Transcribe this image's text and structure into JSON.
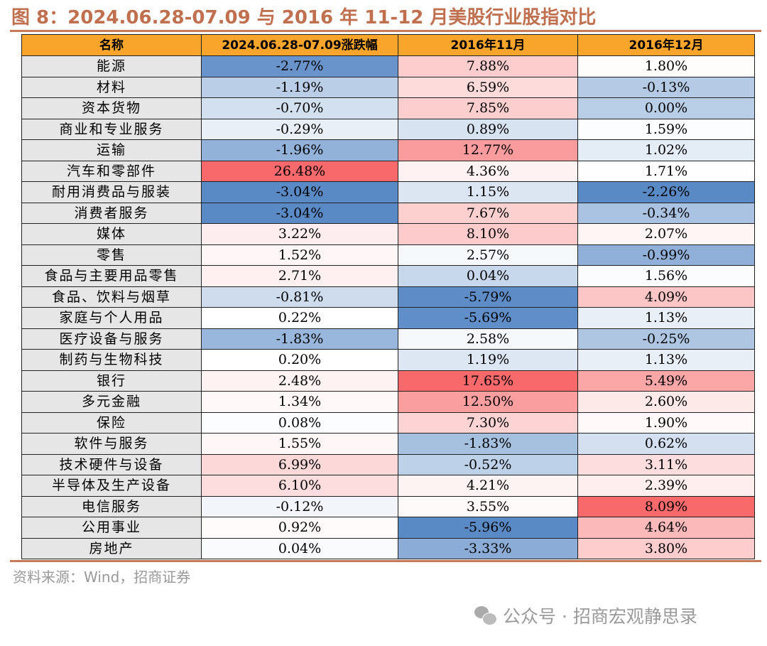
{
  "title": "图 8：2024.06.28-07.09 与 2016 年 11-12 月美股行业股指对比",
  "columns": [
    "名称",
    "2024.06.28-07.09涨跌幅",
    "2016年11月",
    "2016年12月"
  ],
  "rows": [
    [
      "能源",
      "-2.77%",
      "7.88%",
      "1.80%"
    ],
    [
      "材料",
      "-1.19%",
      "6.59%",
      "-0.13%"
    ],
    [
      "资本货物",
      "-0.70%",
      "7.85%",
      "0.00%"
    ],
    [
      "商业和专业服务",
      "-0.29%",
      "0.89%",
      "1.59%"
    ],
    [
      "运输",
      "-1.96%",
      "12.77%",
      "1.02%"
    ],
    [
      "汽车和零部件",
      "26.48%",
      "4.36%",
      "1.71%"
    ],
    [
      "耐用消费品与服装",
      "-3.04%",
      "1.15%",
      "-2.26%"
    ],
    [
      "消费者服务",
      "-3.04%",
      "7.67%",
      "-0.34%"
    ],
    [
      "媒体",
      "3.22%",
      "8.10%",
      "2.07%"
    ],
    [
      "零售",
      "1.52%",
      "2.57%",
      "-0.99%"
    ],
    [
      "食品与主要用品零售",
      "2.71%",
      "0.04%",
      "1.56%"
    ],
    [
      "食品、饮料与烟草",
      "-0.81%",
      "-5.79%",
      "4.09%"
    ],
    [
      "家庭与个人用品",
      "0.22%",
      "-5.69%",
      "1.13%"
    ],
    [
      "医疗设备与服务",
      "-1.83%",
      "2.58%",
      "-0.25%"
    ],
    [
      "制药与生物科技",
      "0.20%",
      "1.19%",
      "1.13%"
    ],
    [
      "银行",
      "2.48%",
      "17.65%",
      "5.49%"
    ],
    [
      "多元金融",
      "1.34%",
      "12.50%",
      "2.60%"
    ],
    [
      "保险",
      "0.08%",
      "7.30%",
      "1.90%"
    ],
    [
      "软件与服务",
      "1.55%",
      "-1.83%",
      "0.62%"
    ],
    [
      "技术硬件与设备",
      "6.99%",
      "-0.52%",
      "3.11%"
    ],
    [
      "半导体及生产设备",
      "6.10%",
      "4.21%",
      "2.39%"
    ],
    [
      "电信服务",
      "-0.12%",
      "3.55%",
      "8.09%"
    ],
    [
      "公用事业",
      "0.92%",
      "-5.96%",
      "4.64%"
    ],
    [
      "房地产",
      "0.04%",
      "-3.33%",
      "3.80%"
    ]
  ],
  "colors": {
    "high": "#f8696b",
    "low": "#5a8ac6",
    "mid": "#ffffff",
    "header": "#f9a52c",
    "title": "#c0704f"
  },
  "source": "资料来源：Wind，招商证券",
  "watermark": "公众号 · 招商宏观静思录"
}
